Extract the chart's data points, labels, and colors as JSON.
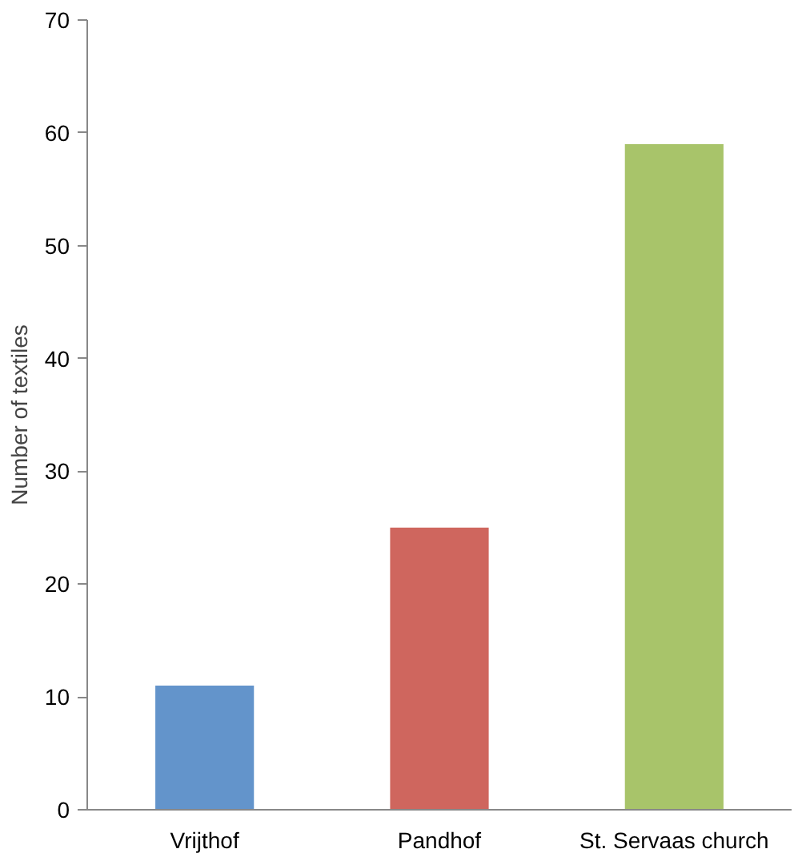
{
  "chart_data": {
    "type": "bar",
    "ylabel": "Number of textiles",
    "categories": [
      "Vrijthof",
      "Pandhof",
      "St. Servaas church"
    ],
    "values": [
      11,
      25,
      59
    ],
    "colors": [
      "#6394cb",
      "#cf665e",
      "#a8c46a"
    ],
    "ylim": [
      0,
      70
    ],
    "yticks": [
      0,
      10,
      20,
      30,
      40,
      50,
      60,
      70
    ],
    "grid": false
  }
}
